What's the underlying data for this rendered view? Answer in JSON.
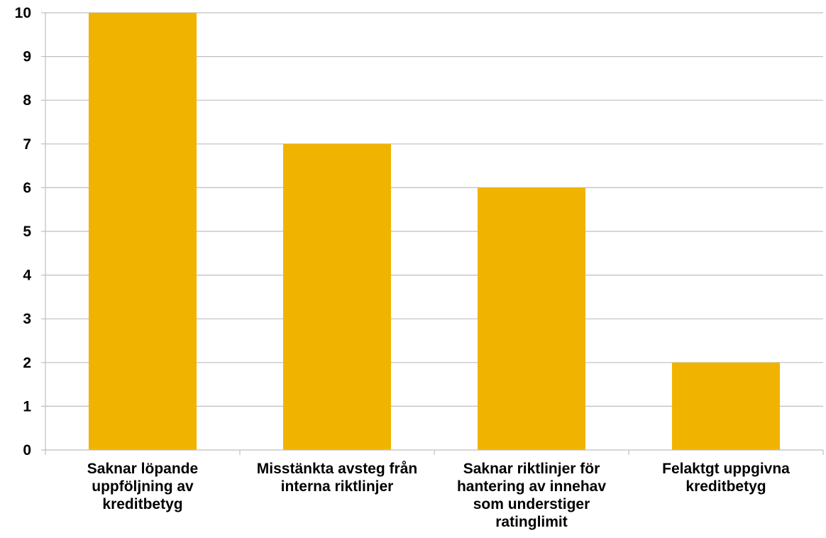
{
  "chart_data": {
    "type": "bar",
    "title": "",
    "xlabel": "",
    "ylabel": "",
    "ylim": [
      0,
      10
    ],
    "yticks": [
      0,
      1,
      2,
      3,
      4,
      5,
      6,
      7,
      8,
      9,
      10
    ],
    "grid": true,
    "legend": "none",
    "bar_color": "#F0B400",
    "grid_color": "#BFBFBF",
    "categories": [
      [
        "Saknar löpande",
        "uppföljning av",
        "kreditbetyg"
      ],
      [
        "Misstänkta avsteg från",
        "interna riktlinjer"
      ],
      [
        "Saknar riktlinjer för",
        "hantering av innehav",
        "som understiger",
        "ratinglimit"
      ],
      [
        "Felaktgt uppgivna",
        "kreditbetyg"
      ]
    ],
    "values": [
      10,
      7,
      6,
      2
    ]
  }
}
